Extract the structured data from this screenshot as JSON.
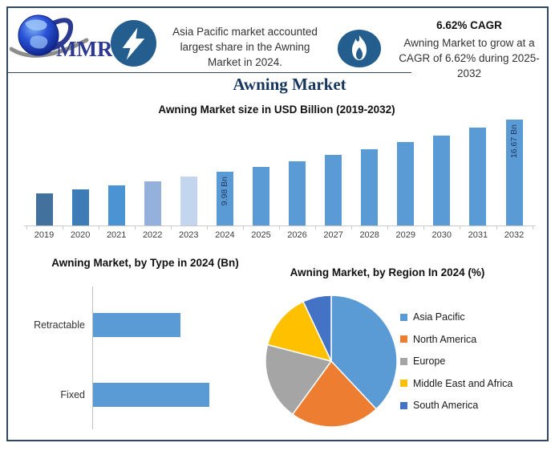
{
  "page": {
    "title": "Awning Market"
  },
  "header": {
    "logo": {
      "text": "MMR"
    },
    "left_highlight": "Asia Pacific market accounted largest share in the Awning Market in 2024.",
    "cagr": {
      "headline": "6.62% CAGR",
      "body": "Awning Market to grow at a CAGR of 6.62% during 2025-2032"
    },
    "icon_color": "#235e8e"
  },
  "chart_data": [
    {
      "type": "bar",
      "title": "Awning Market size in USD Billion (2019-2032)",
      "categories": [
        "2019",
        "2020",
        "2021",
        "2022",
        "2023",
        "2024",
        "2025",
        "2026",
        "2027",
        "2028",
        "2029",
        "2030",
        "2031",
        "2032"
      ],
      "values": [
        7.24,
        7.72,
        8.23,
        8.78,
        9.36,
        9.98,
        10.64,
        11.34,
        12.09,
        12.89,
        13.75,
        14.66,
        15.63,
        16.67
      ],
      "unit": "USD Billion",
      "ylim": [
        0,
        18
      ],
      "grid": false,
      "annotations": [
        {
          "category": "2024",
          "text": "9.98 Bn"
        },
        {
          "category": "2032",
          "text": "16.67 Bn"
        }
      ],
      "bar_colors": [
        "#41719C",
        "#3E7CB8",
        "#4A94D4",
        "#93B1DB",
        "#C3D6ED",
        "#5B9BD5",
        "#5B9BD5",
        "#5B9BD5",
        "#5B9BD5",
        "#5B9BD5",
        "#5B9BD5",
        "#5B9BD5",
        "#5B9BD5",
        "#5B9BD5"
      ]
    },
    {
      "type": "bar",
      "orientation": "horizontal",
      "title": "Awning Market, by Type in 2024 (Bn)",
      "categories": [
        "Retractable",
        "Fixed"
      ],
      "values": [
        4.3,
        5.7
      ],
      "unit": "Bn",
      "xlim": [
        0,
        6.5
      ],
      "grid": false,
      "color": "#5B9BD5"
    },
    {
      "type": "pie",
      "title": "Awning Market, by Region In 2024 (%)",
      "labels": [
        "Asia Pacific",
        "North America",
        "Europe",
        "Middle East and Africa",
        "South America"
      ],
      "values": [
        38,
        22,
        19,
        14,
        7
      ],
      "colors": [
        "#5B9BD5",
        "#ED7D31",
        "#A5A5A5",
        "#FFC000",
        "#4472C4"
      ],
      "legend_position": "right"
    }
  ]
}
